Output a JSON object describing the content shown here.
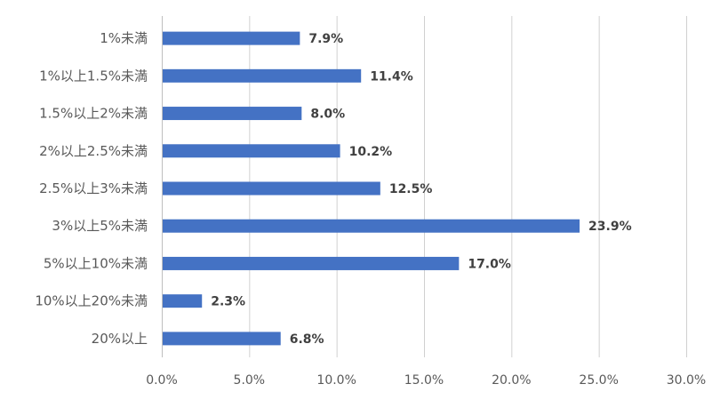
{
  "chart_data": {
    "type": "bar",
    "orientation": "horizontal",
    "categories": [
      "1%未満",
      "1%以上1.5%未満",
      "1.5%以上2%未満",
      "2%以上2.5%未満",
      "2.5%以上3%未満",
      "3%以上5%未満",
      "5%以上10%未満",
      "10%以上20%未満",
      "20%以上"
    ],
    "values": [
      7.9,
      11.4,
      8.0,
      10.2,
      12.5,
      23.9,
      17.0,
      2.3,
      6.8
    ],
    "data_labels": [
      "7.9%",
      "11.4%",
      "8.0%",
      "10.2%",
      "12.5%",
      "23.9%",
      "17.0%",
      "2.3%",
      "6.8%"
    ],
    "x_ticks": [
      0,
      5,
      10,
      15,
      20,
      25,
      30
    ],
    "x_tick_labels": [
      "0.0%",
      "5.0%",
      "10.0%",
      "15.0%",
      "20.0%",
      "25.0%",
      "30.0%"
    ],
    "xlim": [
      0,
      30
    ],
    "title": "",
    "xlabel": "",
    "ylabel": "",
    "grid": "vertical",
    "legend": "none",
    "bar_color": "#4472C4"
  }
}
